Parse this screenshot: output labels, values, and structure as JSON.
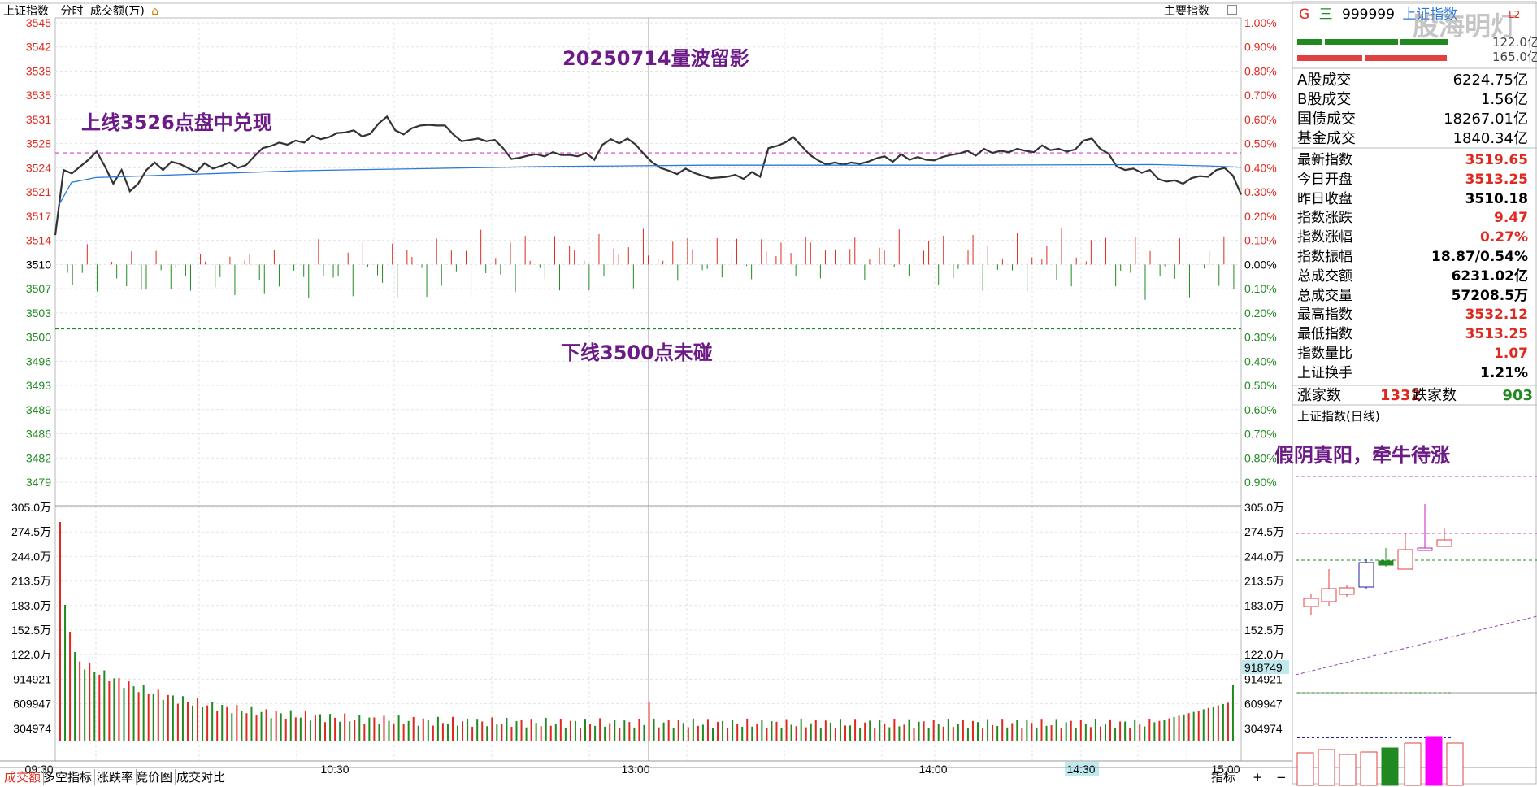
{
  "top_bar": {
    "title": "上证指数",
    "mode": "分时",
    "sub_indicator": "成交额(万)",
    "main_indicator_button": "主要指数",
    "right_title_prefix": "G",
    "right_title_icon": "三",
    "right_code": "999999",
    "right_name": "上证指数",
    "watermark": "股海明灯",
    "right_corner": "L2"
  },
  "price_axis": {
    "left_labels": [
      "3545",
      "3542",
      "3538",
      "3535",
      "3531",
      "3528",
      "3524",
      "3521",
      "3517",
      "3514",
      "3510",
      "3507",
      "3503",
      "3500",
      "3496",
      "3493",
      "3489",
      "3486",
      "3482",
      "3479"
    ],
    "right_labels": [
      "1.00%",
      "0.90%",
      "0.80%",
      "0.70%",
      "0.60%",
      "0.50%",
      "0.40%",
      "0.30%",
      "0.20%",
      "0.10%",
      "0.00%",
      "0.10%",
      "0.20%",
      "0.30%",
      "0.40%",
      "0.50%",
      "0.60%",
      "0.70%",
      "0.80%",
      "0.90%"
    ],
    "up_color": "#e0281e",
    "down_color": "#208a20"
  },
  "volume_axis": {
    "left_labels": [
      "305.0万",
      "274.5万",
      "244.0万",
      "213.5万",
      "183.0万",
      "152.5万",
      "122.0万",
      "914921",
      "609947",
      "304974"
    ],
    "right_labels": [
      "305.0万",
      "274.5万",
      "244.0万",
      "213.5万",
      "183.0万",
      "152.5万",
      "122.0万",
      "914921",
      "609947",
      "304974"
    ],
    "highlight_value": "918749"
  },
  "time_axis": {
    "labels": [
      "09:30",
      "10:30",
      "13:00",
      "14:00",
      "14:30",
      "15:00"
    ],
    "highlight": "14:30"
  },
  "annotations": {
    "title": "20250714量波留影",
    "upper": "上线3526点盘中兑现",
    "lower": "下线3500点未碰",
    "daily": "假阴真阳，牵牛待涨"
  },
  "summary_right": {
    "top_bar_values": [
      "122.0亿",
      "165.0亿"
    ],
    "rows": [
      {
        "label": "A股成交",
        "value": "6224.75亿",
        "color": "#000000"
      },
      {
        "label": "B股成交",
        "value": "1.56亿",
        "color": "#000000"
      },
      {
        "label": "国债成交",
        "value": "18267.01亿",
        "color": "#000000"
      },
      {
        "label": "基金成交",
        "value": "1840.34亿",
        "color": "#000000"
      }
    ],
    "stats": [
      {
        "label": "最新指数",
        "value": "3519.65",
        "color": "#e0281e"
      },
      {
        "label": "今日开盘",
        "value": "3513.25",
        "color": "#e0281e"
      },
      {
        "label": "昨日收盘",
        "value": "3510.18",
        "color": "#000000"
      },
      {
        "label": "指数涨跌",
        "value": "9.47",
        "color": "#e0281e"
      },
      {
        "label": "指数涨幅",
        "value": "0.27%",
        "color": "#e0281e"
      },
      {
        "label": "指数振幅",
        "value": "18.87/0.54%",
        "color": "#000000"
      },
      {
        "label": "总成交额",
        "value": "6231.02亿",
        "color": "#000000"
      },
      {
        "label": "总成交量",
        "value": "57208.5万",
        "color": "#000000"
      },
      {
        "label": "最高指数",
        "value": "3532.12",
        "color": "#e0281e"
      },
      {
        "label": "最低指数",
        "value": "3513.25",
        "color": "#e0281e"
      },
      {
        "label": "指数量比",
        "value": "1.07",
        "color": "#e0281e"
      },
      {
        "label": "上证换手",
        "value": "1.21%",
        "color": "#000000"
      }
    ],
    "up_label": "涨家数",
    "up_count": "1332",
    "down_label": "跌家数",
    "down_count": "903",
    "daily_title": "上证指数(日线)"
  },
  "bottom_tabs": [
    "成交额",
    "多空指标",
    "涨跌率",
    "竞价图",
    "成交对比"
  ],
  "bottom_right": {
    "indicator_button": "指标",
    "plus": "+",
    "minus": "−"
  }
}
